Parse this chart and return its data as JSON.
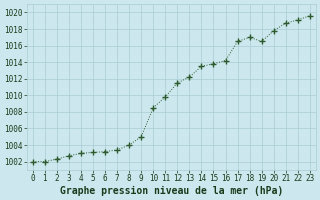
{
  "x": [
    0,
    1,
    2,
    3,
    4,
    5,
    6,
    7,
    8,
    9,
    10,
    11,
    12,
    13,
    14,
    15,
    16,
    17,
    18,
    19,
    20,
    21,
    22,
    23
  ],
  "y": [
    1002.0,
    1002.0,
    1002.3,
    1002.7,
    1003.0,
    1003.1,
    1003.2,
    1003.4,
    1004.0,
    1005.0,
    1008.5,
    1009.8,
    1011.5,
    1012.2,
    1013.5,
    1013.8,
    1014.2,
    1016.5,
    1017.0,
    1016.5,
    1017.8,
    1018.7,
    1019.1,
    1019.6
  ],
  "line_color": "#2d5a2d",
  "marker": "+",
  "marker_size": 4,
  "bg_color": "#cce8ee",
  "grid_color": "#aaccd4",
  "xlabel": "Graphe pression niveau de la mer (hPa)",
  "xlabel_fontsize": 7,
  "xlabel_color": "#1a3a1a",
  "ylabel_ticks": [
    1002,
    1004,
    1006,
    1008,
    1010,
    1012,
    1014,
    1016,
    1018,
    1020
  ],
  "ylim": [
    1001.0,
    1021.0
  ],
  "xlim": [
    -0.5,
    23.5
  ],
  "xticks": [
    0,
    1,
    2,
    3,
    4,
    5,
    6,
    7,
    8,
    9,
    10,
    11,
    12,
    13,
    14,
    15,
    16,
    17,
    18,
    19,
    20,
    21,
    22,
    23
  ],
  "tick_fontsize": 5.5,
  "tick_color": "#1a3a1a"
}
